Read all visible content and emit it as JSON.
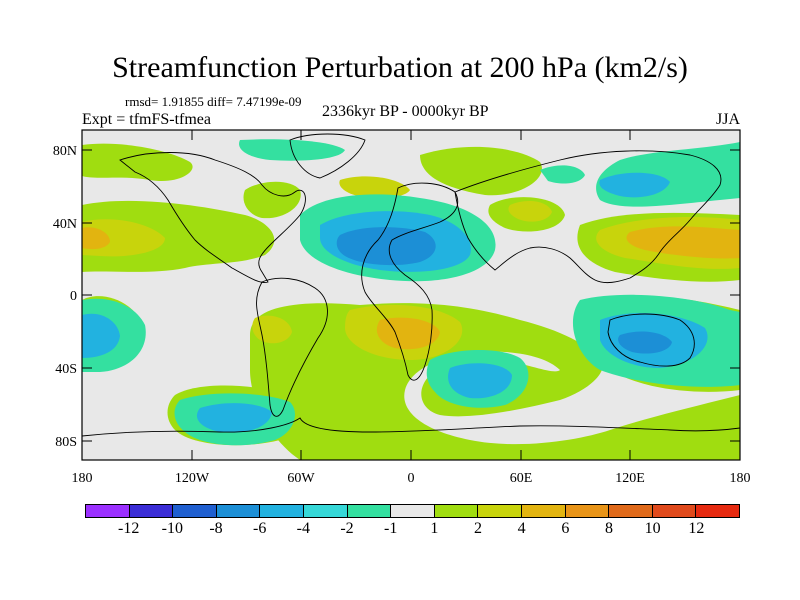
{
  "title": "Streamfunction Perturbation at 200 hPa (km2/s)",
  "rmsd_text": "rmsd= 1.91855 diff= 7.47199e-09",
  "experiment": "Expt = tfmFS-tfmea",
  "period": "2336kyr BP - 0000kyr BP",
  "season": "JJA",
  "lat_labels": [
    "80N",
    "40N",
    "0",
    "40S",
    "80S"
  ],
  "lon_labels": [
    "180",
    "120W",
    "60W",
    "0",
    "60E",
    "120E",
    "180"
  ],
  "colorbar": {
    "labels": [
      "-12",
      "-10",
      "-8",
      "-6",
      "-4",
      "-2",
      "-1",
      "1",
      "2",
      "4",
      "6",
      "8",
      "10",
      "12"
    ],
    "colors": [
      "#9b30ff",
      "#3b2dd6",
      "#1f5fd0",
      "#1c8fd6",
      "#22b2e0",
      "#36d8d8",
      "#34e0a0",
      "#e8e8e8",
      "#a0dd10",
      "#c8d40c",
      "#e2b410",
      "#e89418",
      "#e06a1a",
      "#e04a1c",
      "#e62a10"
    ]
  },
  "map_data": {
    "lat_range": [
      -90,
      90
    ],
    "lon_range": [
      -180,
      180
    ],
    "anomalies": [
      {
        "name": "north-atlantic-low",
        "lon": -15,
        "lat": 28,
        "level": "-8"
      },
      {
        "name": "south-indian-low",
        "lon": 45,
        "lat": -45,
        "level": "-6"
      },
      {
        "name": "australia-low",
        "lon": 130,
        "lat": -25,
        "level": "-6"
      },
      {
        "name": "se-pacific-low",
        "lon": -90,
        "lat": -65,
        "level": "-4"
      },
      {
        "name": "west-pacific-low",
        "lon": -175,
        "lat": -20,
        "level": "-4"
      },
      {
        "name": "south-atlantic-high",
        "lon": -5,
        "lat": -25,
        "level": "6"
      },
      {
        "name": "nw-pacific-high",
        "lon": 160,
        "lat": 30,
        "level": "6"
      },
      {
        "name": "ne-pacific-high",
        "lon": -180,
        "lat": 30,
        "level": "6"
      },
      {
        "name": "siberia-high",
        "lon": 95,
        "lat": 50,
        "level": "-2"
      }
    ]
  }
}
